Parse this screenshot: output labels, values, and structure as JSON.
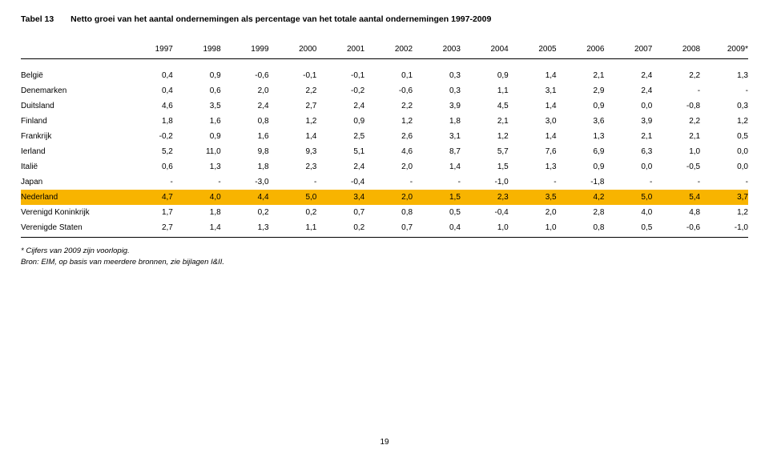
{
  "title_prefix": "Tabel 13",
  "title_text": "Netto groei van het aantal ondernemingen als percentage van het totale aantal ondernemingen 1997-2009",
  "years": [
    "1997",
    "1998",
    "1999",
    "2000",
    "2001",
    "2002",
    "2003",
    "2004",
    "2005",
    "2006",
    "2007",
    "2008",
    "2009*"
  ],
  "rows": [
    {
      "label": "België",
      "v": [
        "0,4",
        "0,9",
        "-0,6",
        "-0,1",
        "-0,1",
        "0,1",
        "0,3",
        "0,9",
        "1,4",
        "2,1",
        "2,4",
        "2,2",
        "1,3"
      ]
    },
    {
      "label": "Denemarken",
      "v": [
        "0,4",
        "0,6",
        "2,0",
        "2,2",
        "-0,2",
        "-0,6",
        "0,3",
        "1,1",
        "3,1",
        "2,9",
        "2,4",
        "-",
        "-"
      ]
    },
    {
      "label": "Duitsland",
      "v": [
        "4,6",
        "3,5",
        "2,4",
        "2,7",
        "2,4",
        "2,2",
        "3,9",
        "4,5",
        "1,4",
        "0,9",
        "0,0",
        "-0,8",
        "0,3"
      ]
    },
    {
      "label": "Finland",
      "v": [
        "1,8",
        "1,6",
        "0,8",
        "1,2",
        "0,9",
        "1,2",
        "1,8",
        "2,1",
        "3,0",
        "3,6",
        "3,9",
        "2,2",
        "1,2"
      ]
    },
    {
      "label": "Frankrijk",
      "v": [
        "-0,2",
        "0,9",
        "1,6",
        "1,4",
        "2,5",
        "2,6",
        "3,1",
        "1,2",
        "1,4",
        "1,3",
        "2,1",
        "2,1",
        "0,5"
      ]
    },
    {
      "label": "Ierland",
      "v": [
        "5,2",
        "11,0",
        "9,8",
        "9,3",
        "5,1",
        "4,6",
        "8,7",
        "5,7",
        "7,6",
        "6,9",
        "6,3",
        "1,0",
        "0,0"
      ]
    },
    {
      "label": "Italië",
      "v": [
        "0,6",
        "1,3",
        "1,8",
        "2,3",
        "2,4",
        "2,0",
        "1,4",
        "1,5",
        "1,3",
        "0,9",
        "0,0",
        "-0,5",
        "0,0"
      ]
    },
    {
      "label": "Japan",
      "v": [
        "-",
        "-",
        "-3,0",
        "-",
        "-0,4",
        "-",
        "-",
        "-1,0",
        "-",
        "-1,8",
        "-",
        "-",
        "-"
      ]
    },
    {
      "label": "Nederland",
      "v": [
        "4,7",
        "4,0",
        "4,4",
        "5,0",
        "3,4",
        "2,0",
        "1,5",
        "2,3",
        "3,5",
        "4,2",
        "5,0",
        "5,4",
        "3,7"
      ],
      "highlight": true
    },
    {
      "label": "Verenigd Koninkrijk",
      "v": [
        "1,7",
        "1,8",
        "0,2",
        "0,2",
        "0,7",
        "0,8",
        "0,5",
        "-0,4",
        "2,0",
        "2,8",
        "4,0",
        "4,8",
        "1,2"
      ]
    },
    {
      "label": "Verenigde Staten",
      "v": [
        "2,7",
        "1,4",
        "1,3",
        "1,1",
        "0,2",
        "0,7",
        "0,4",
        "1,0",
        "1,0",
        "0,8",
        "0,5",
        "-0,6",
        "-1,0"
      ]
    }
  ],
  "footnote_1": "*   Cijfers van 2009 zijn voorlopig.",
  "footnote_2": "Bron: EIM, op basis van meerdere bronnen, zie bijlagen I&II.",
  "page_number": "19",
  "colors": {
    "highlight_bg": "#f8b400",
    "text": "#000000",
    "bg": "#ffffff"
  }
}
